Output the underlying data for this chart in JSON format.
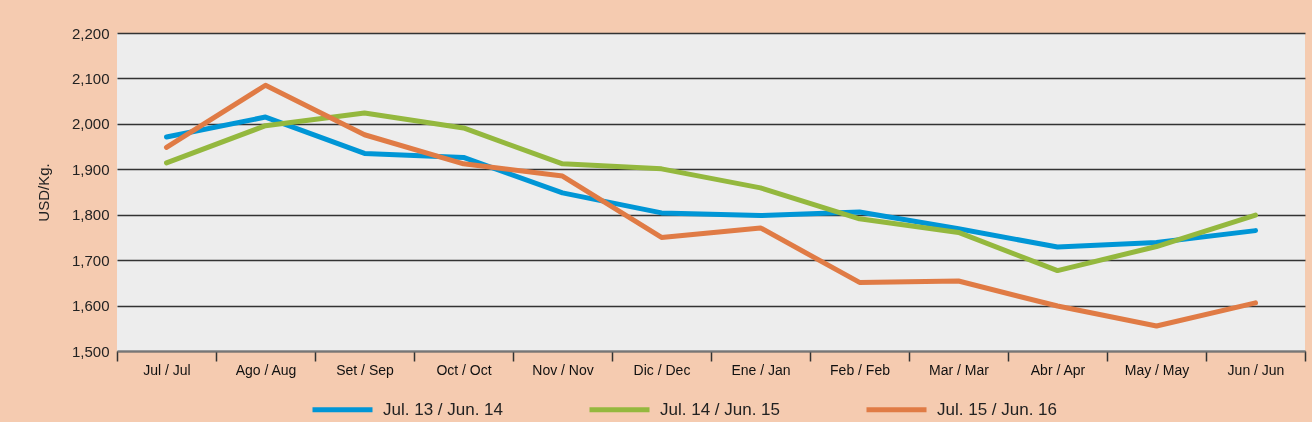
{
  "chart_data": {
    "type": "line",
    "ylabel": "USD/Kg.",
    "categories": [
      "Jul / Jul",
      "Ago / Aug",
      "Set / Sep",
      "Oct / Oct",
      "Nov / Nov",
      "Dic / Dec",
      "Ene / Jan",
      "Feb / Feb",
      "Mar / Mar",
      "Abr / Apr",
      "May / May",
      "Jun / Jun"
    ],
    "series": [
      {
        "name": "Jul. 13 / Jun. 14",
        "color": "#0096d6",
        "values": [
          1971,
          2015,
          1935,
          1926,
          1848,
          1804,
          1798,
          1806,
          1769,
          1729,
          1739,
          1765
        ]
      },
      {
        "name": "Jul. 14 / Jun. 15",
        "color": "#94b83e",
        "values": [
          1914,
          1996,
          2024,
          1991,
          1912,
          1901,
          1859,
          1791,
          1761,
          1677,
          1730,
          1799
        ]
      },
      {
        "name": "Jul. 15 / Jun. 16",
        "color": "#e07b45",
        "values": [
          1948,
          2085,
          1976,
          1912,
          1885,
          1750,
          1771,
          1651,
          1654,
          1599,
          1555,
          1606
        ]
      }
    ],
    "ylim": [
      1500,
      2200
    ],
    "yticks": [
      {
        "value": 1500,
        "label": "1,500"
      },
      {
        "value": 1600,
        "label": "1,600"
      },
      {
        "value": 1700,
        "label": "1,700"
      },
      {
        "value": 1800,
        "label": "1,800"
      },
      {
        "value": 1900,
        "label": "1,900"
      },
      {
        "value": 2000,
        "label": "2,000"
      },
      {
        "value": 2100,
        "label": "2,100"
      },
      {
        "value": 2200,
        "label": "2,200"
      }
    ],
    "grid": "y",
    "legend": "bottom",
    "line_style": "solid"
  }
}
